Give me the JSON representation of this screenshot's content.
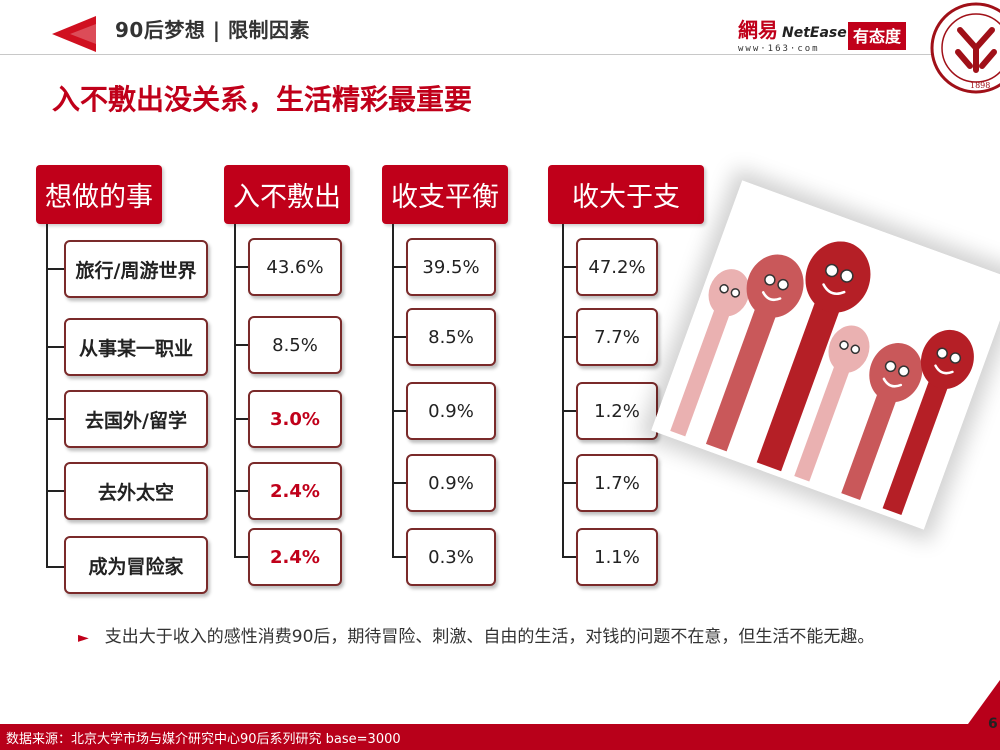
{
  "header": {
    "section_title": "90后梦想 | 限制因素",
    "main_title": "入不敷出没关系，生活精彩最重要"
  },
  "logos": {
    "netease_cn": "網易",
    "netease_en": "NetEase",
    "netease_url": "www·163·com",
    "youtaidu": "有态度",
    "seal_year": "1898"
  },
  "columns": {
    "dreams": "想做的事",
    "deficit": "入不敷出",
    "balanced": "收支平衡",
    "surplus": "收大于支"
  },
  "rows": [
    {
      "dream": "旅行/周游世界",
      "deficit": "43.6%",
      "balanced": "39.5%",
      "surplus": "47.2%",
      "deficit_highlight": false
    },
    {
      "dream": "从事某一职业",
      "deficit": "8.5%",
      "balanced": "8.5%",
      "surplus": "7.7%",
      "deficit_highlight": false
    },
    {
      "dream": "去国外/留学",
      "deficit": "3.0%",
      "balanced": "0.9%",
      "surplus": "1.2%",
      "deficit_highlight": true
    },
    {
      "dream": "去外太空",
      "deficit": "2.4%",
      "balanced": "0.9%",
      "surplus": "1.7%",
      "deficit_highlight": true
    },
    {
      "dream": "成为冒险家",
      "deficit": "2.4%",
      "balanced": "0.3%",
      "surplus": "1.1%",
      "deficit_highlight": true
    }
  ],
  "note": {
    "bullet": "►",
    "text": "支出大于收入的感性消费90后，期待冒险、刺激、自由的生活，对钱的问题不在意，但生活不能无趣。"
  },
  "footer": {
    "source": "数据来源：北京大学市场与媒介研究中心90后系列研究 base=3000",
    "page": "6"
  },
  "colors": {
    "accent": "#c0001a",
    "footer": "#b8001a"
  }
}
